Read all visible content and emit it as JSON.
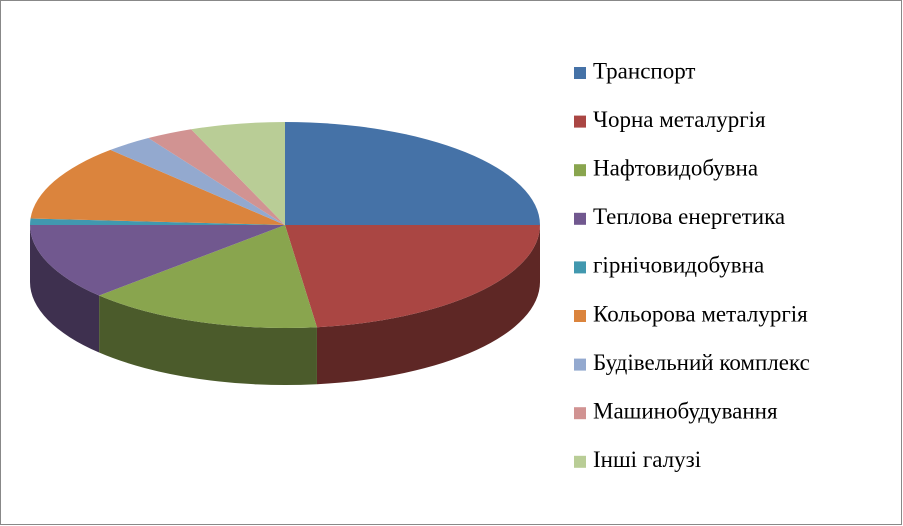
{
  "chart_data": {
    "type": "pie3d",
    "categories": [
      "Транспорт",
      "Чорна металургія",
      "Нафтовидобувна",
      "Теплова енергетика",
      "гірнічовидобувна",
      "Кольорова металургія",
      "Будівельний комплекс",
      "Машинобудування",
      "Інші галузі"
    ],
    "values": [
      25,
      23,
      15,
      12,
      1,
      12,
      3,
      3,
      6
    ],
    "colors": [
      "#4572a7",
      "#aa4643",
      "#89a54e",
      "#71588f",
      "#4198af",
      "#db843d",
      "#93a9cf",
      "#d19392",
      "#b9cd96"
    ],
    "legend": "right"
  }
}
